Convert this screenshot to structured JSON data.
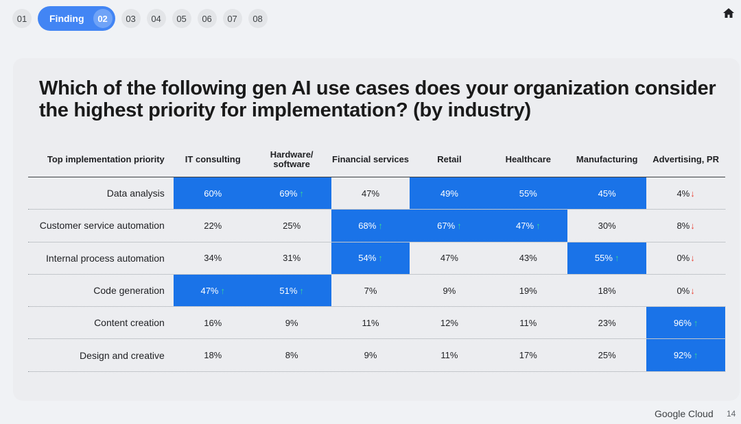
{
  "nav": {
    "items": [
      "01",
      "03",
      "04",
      "05",
      "06",
      "07",
      "08"
    ],
    "active_label": "Finding",
    "active_number": "02"
  },
  "title": "Which of the following gen AI use cases does your organization consider the highest priority for implementation? (by industry)",
  "table": {
    "row_header": "Top implementation priority",
    "columns": [
      "IT consulting",
      "Hardware/ software",
      "Financial services",
      "Retail",
      "Healthcare",
      "Manufacturing",
      "Advertising, PR"
    ],
    "rows": [
      {
        "label": "Data analysis",
        "cells": [
          {
            "v": "60%",
            "hl": true,
            "t": ""
          },
          {
            "v": "69%",
            "hl": true,
            "t": "up"
          },
          {
            "v": "47%",
            "hl": false,
            "t": ""
          },
          {
            "v": "49%",
            "hl": true,
            "t": ""
          },
          {
            "v": "55%",
            "hl": true,
            "t": ""
          },
          {
            "v": "45%",
            "hl": true,
            "t": ""
          },
          {
            "v": "4%",
            "hl": false,
            "t": "down"
          }
        ]
      },
      {
        "label": "Customer service automation",
        "cells": [
          {
            "v": "22%",
            "hl": false,
            "t": ""
          },
          {
            "v": "25%",
            "hl": false,
            "t": ""
          },
          {
            "v": "68%",
            "hl": true,
            "t": "up"
          },
          {
            "v": "67%",
            "hl": true,
            "t": "up"
          },
          {
            "v": "47%",
            "hl": true,
            "t": "up"
          },
          {
            "v": "30%",
            "hl": false,
            "t": ""
          },
          {
            "v": "8%",
            "hl": false,
            "t": "down"
          }
        ]
      },
      {
        "label": "Internal process automation",
        "cells": [
          {
            "v": "34%",
            "hl": false,
            "t": ""
          },
          {
            "v": "31%",
            "hl": false,
            "t": ""
          },
          {
            "v": "54%",
            "hl": true,
            "t": "up"
          },
          {
            "v": "47%",
            "hl": false,
            "t": ""
          },
          {
            "v": "43%",
            "hl": false,
            "t": ""
          },
          {
            "v": "55%",
            "hl": true,
            "t": "up"
          },
          {
            "v": "0%",
            "hl": false,
            "t": "down"
          }
        ]
      },
      {
        "label": "Code generation",
        "cells": [
          {
            "v": "47%",
            "hl": true,
            "t": "up"
          },
          {
            "v": "51%",
            "hl": true,
            "t": "up"
          },
          {
            "v": "7%",
            "hl": false,
            "t": ""
          },
          {
            "v": "9%",
            "hl": false,
            "t": ""
          },
          {
            "v": "19%",
            "hl": false,
            "t": ""
          },
          {
            "v": "18%",
            "hl": false,
            "t": ""
          },
          {
            "v": "0%",
            "hl": false,
            "t": "down"
          }
        ]
      },
      {
        "label": "Content creation",
        "cells": [
          {
            "v": "16%",
            "hl": false,
            "t": ""
          },
          {
            "v": "9%",
            "hl": false,
            "t": ""
          },
          {
            "v": "11%",
            "hl": false,
            "t": ""
          },
          {
            "v": "12%",
            "hl": false,
            "t": ""
          },
          {
            "v": "11%",
            "hl": false,
            "t": ""
          },
          {
            "v": "23%",
            "hl": false,
            "t": ""
          },
          {
            "v": "96%",
            "hl": true,
            "t": "up"
          }
        ]
      },
      {
        "label": "Design and creative",
        "cells": [
          {
            "v": "18%",
            "hl": false,
            "t": ""
          },
          {
            "v": "8%",
            "hl": false,
            "t": ""
          },
          {
            "v": "9%",
            "hl": false,
            "t": ""
          },
          {
            "v": "11%",
            "hl": false,
            "t": ""
          },
          {
            "v": "17%",
            "hl": false,
            "t": ""
          },
          {
            "v": "25%",
            "hl": false,
            "t": ""
          },
          {
            "v": "92%",
            "hl": true,
            "t": "up"
          }
        ]
      }
    ]
  },
  "footer": {
    "brand": "Google Cloud",
    "page": "14"
  },
  "colors": {
    "highlight": "#1a73e8",
    "up": "#34d399",
    "down": "#ea4335",
    "nav_active": "#4285f4"
  }
}
